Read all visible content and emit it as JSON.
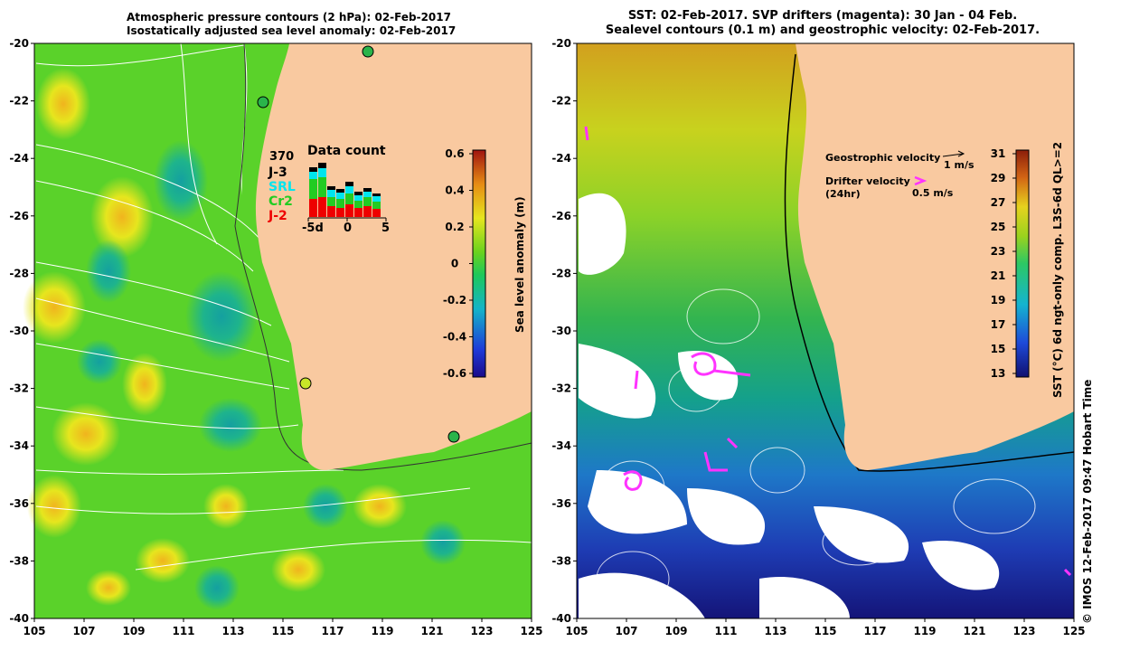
{
  "left_panel": {
    "title_line1": "Atmospheric pressure contours (2 hPa): 02-Feb-2017",
    "title_line2": "Isostatically adjusted sea level anomaly: 02-Feb-2017",
    "y_ticks": [
      "-20",
      "-22",
      "-24",
      "-26",
      "-28",
      "-30",
      "-32",
      "-34",
      "-36",
      "-38",
      "-40"
    ],
    "x_ticks": [
      "105",
      "107",
      "109",
      "111",
      "113",
      "115",
      "117",
      "119",
      "121",
      "123",
      "125"
    ],
    "colorbar_ticks": [
      "0.6",
      "0.4",
      "0.2",
      "0",
      "-0.2",
      "-0.4",
      "-0.6"
    ],
    "colorbar_label": "Sea level anomaly (m)",
    "inset": {
      "title": "Data count",
      "count": "370",
      "missions": [
        {
          "name": "J-3",
          "color": "#000000"
        },
        {
          "name": "SRL",
          "color": "#00e5ee"
        },
        {
          "name": "Cr2",
          "color": "#22cc22"
        },
        {
          "name": "J-2",
          "color": "#ee0000"
        }
      ],
      "x_ticks": [
        "-5d",
        "0",
        "5"
      ]
    }
  },
  "right_panel": {
    "title_line1": "SST: 02-Feb-2017. SVP drifters (magenta): 30 Jan - 04 Feb.",
    "title_line2": "Sealevel contours (0.1 m) and geostrophic velocity: 02-Feb-2017.",
    "y_ticks": [
      "-20",
      "-22",
      "-24",
      "-26",
      "-28",
      "-30",
      "-32",
      "-34",
      "-36",
      "-38",
      "-40"
    ],
    "x_ticks": [
      "105",
      "107",
      "109",
      "111",
      "113",
      "115",
      "117",
      "119",
      "121",
      "123",
      "125"
    ],
    "colorbar_ticks": [
      "31",
      "29",
      "27",
      "25",
      "23",
      "21",
      "19",
      "17",
      "15",
      "13"
    ],
    "colorbar_label": "SST (°C) 6d ngt-only comp. L3S-6d QL>=2",
    "legend": {
      "geo_label": "Geostrophic velocity",
      "geo_scale": "1 m/s",
      "drifter_label": "Drifter velocity",
      "drifter_sub": "(24hr)",
      "drifter_scale": "0.5 m/s"
    },
    "credit": "© IMOS 12-Feb-2017 09:47 Hobart Time"
  },
  "colors": {
    "land": "#f9c9a0",
    "sea_green": "#33cc33",
    "drifter": "#ff33ff"
  }
}
